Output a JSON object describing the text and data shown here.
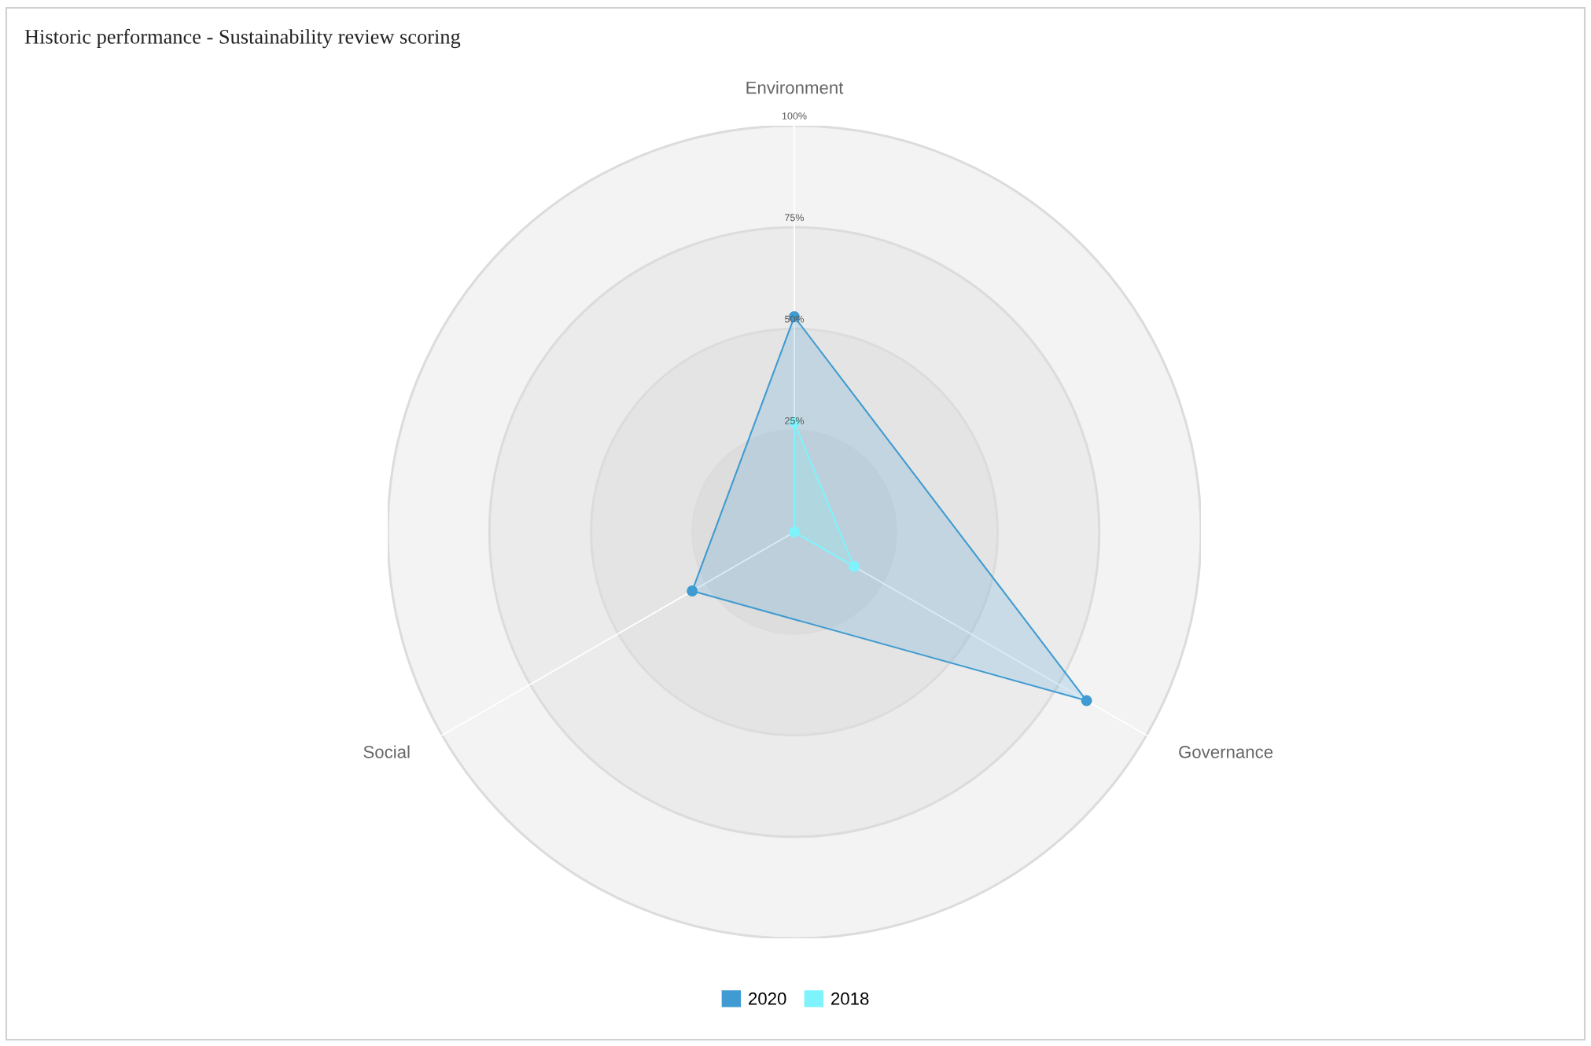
{
  "chart_data": {
    "type": "radar",
    "title": "Historic performance - Sustainability review scoring",
    "categories": [
      "Environment",
      "Governance",
      "Social"
    ],
    "ylim": [
      0,
      100
    ],
    "yticks": [
      {
        "value": 25,
        "label": "25%"
      },
      {
        "value": 50,
        "label": "50%"
      },
      {
        "value": 75,
        "label": "75%"
      },
      {
        "value": 100,
        "label": "100%"
      }
    ],
    "grid": true,
    "legend": "bottom",
    "marker": "circle",
    "line_style": "solid",
    "series": [
      {
        "name": "2020",
        "color": "#3f9bd1",
        "values": [
          53,
          83,
          29
        ]
      },
      {
        "name": "2018",
        "color": "#7ef3fb",
        "values": [
          27,
          17,
          0
        ]
      }
    ]
  }
}
